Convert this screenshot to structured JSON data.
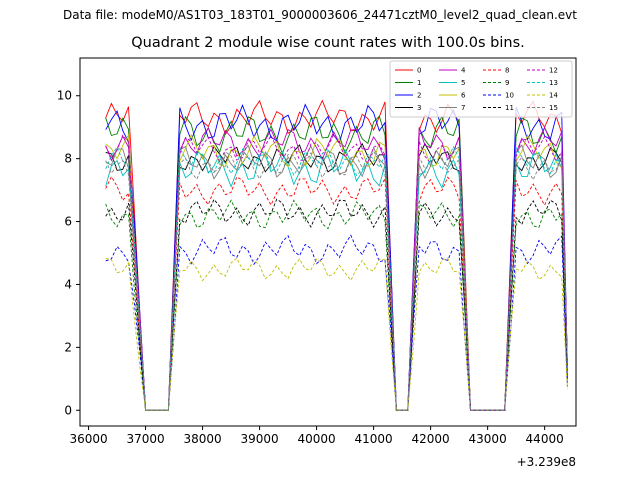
{
  "header": {
    "data_file": "Data file: modeM0/AS1T03_183T01_9000003606_24471cztM0_level2_quad_clean.evt"
  },
  "chart_data": {
    "type": "line",
    "title": "Quadrant 2 module wise count rates with 100.0s bins.",
    "xlabel": "",
    "ylabel": "",
    "x_offset_label": "+3.239e8",
    "xlim": [
      35850,
      44550
    ],
    "ylim": [
      -0.5,
      11.2
    ],
    "x_ticks": [
      36000,
      37000,
      38000,
      39000,
      40000,
      41000,
      42000,
      43000,
      44000
    ],
    "x_tick_labels": [
      "36000",
      "37000",
      "38000",
      "39000",
      "40000",
      "41000",
      "42000",
      "43000",
      "44000"
    ],
    "y_ticks": [
      0,
      2,
      4,
      6,
      8,
      10
    ],
    "y_tick_labels": [
      "0",
      "2",
      "4",
      "6",
      "8",
      "10"
    ],
    "legend_location": "top-right",
    "segments": [
      {
        "start": 36300,
        "end": 37100
      },
      {
        "start": 37000,
        "end": 37500
      },
      {
        "start": 37400,
        "end": 41300
      },
      {
        "start": 41200,
        "end": 41700
      },
      {
        "start": 41700,
        "end": 42600
      },
      {
        "start": 42600,
        "end": 43300
      },
      {
        "start": 43300,
        "end": 44400
      }
    ],
    "series": [
      {
        "name": "0",
        "color": "#ff0000",
        "style": "solid",
        "base": 9.3,
        "amp": 0.35
      },
      {
        "name": "1",
        "color": "#008000",
        "style": "solid",
        "base": 8.8,
        "amp": 0.4
      },
      {
        "name": "2",
        "color": "#0000ff",
        "style": "solid",
        "base": 9.1,
        "amp": 0.4
      },
      {
        "name": "3",
        "color": "#000000",
        "style": "solid",
        "base": 8.0,
        "amp": 0.3
      },
      {
        "name": "4",
        "color": "#bf00bf",
        "style": "solid",
        "base": 8.5,
        "amp": 0.35
      },
      {
        "name": "5",
        "color": "#00bfbf",
        "style": "solid",
        "base": 7.7,
        "amp": 0.4
      },
      {
        "name": "6",
        "color": "#bfbf00",
        "style": "solid",
        "base": 8.2,
        "amp": 0.35
      },
      {
        "name": "7",
        "color": "#808080",
        "style": "solid",
        "base": 7.9,
        "amp": 0.35
      },
      {
        "name": "8",
        "color": "#ff0000",
        "style": "dashed",
        "base": 7.0,
        "amp": 0.3
      },
      {
        "name": "9",
        "color": "#008000",
        "style": "dashed",
        "base": 6.2,
        "amp": 0.3
      },
      {
        "name": "10",
        "color": "#0000ff",
        "style": "dashed",
        "base": 5.1,
        "amp": 0.3
      },
      {
        "name": "11",
        "color": "#000000",
        "style": "dashed",
        "base": 6.3,
        "amp": 0.3
      },
      {
        "name": "12",
        "color": "#bf00bf",
        "style": "dashed",
        "base": 8.3,
        "amp": 0.3
      },
      {
        "name": "13",
        "color": "#00bfbf",
        "style": "dashed",
        "base": 7.9,
        "amp": 0.3
      },
      {
        "name": "14",
        "color": "#bfbf00",
        "style": "dashed",
        "base": 4.5,
        "amp": 0.25
      },
      {
        "name": "15",
        "color": "#808080",
        "style": "dashed",
        "base": 7.8,
        "amp": 0.3
      }
    ]
  }
}
